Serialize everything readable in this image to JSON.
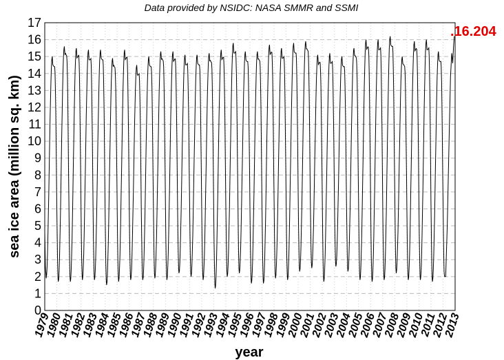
{
  "chart_data": {
    "type": "line",
    "title": "Data provided by NSIDC: NASA SMMR and SSMI",
    "xlabel": "year",
    "ylabel": "sea ice area (million sq. km)",
    "xlim": [
      1979,
      2013
    ],
    "ylim": [
      0,
      17
    ],
    "grid": true,
    "x_ticks": [
      "1979",
      "1980",
      "1981",
      "1982",
      "1983",
      "1984",
      "1985",
      "1986",
      "1987",
      "1988",
      "1989",
      "1990",
      "1991",
      "1992",
      "1993",
      "1994",
      "1995",
      "1996",
      "1997",
      "1998",
      "1999",
      "2000",
      "2001",
      "2002",
      "2003",
      "2004",
      "2005",
      "2006",
      "2007",
      "2008",
      "2009",
      "2010",
      "2011",
      "2012",
      "2013"
    ],
    "y_ticks": [
      "0",
      "1",
      "2",
      "3",
      "4",
      "5",
      "6",
      "7",
      "8",
      "9",
      "10",
      "11",
      "12",
      "13",
      "14",
      "15",
      "16",
      "17"
    ],
    "series": [
      {
        "color": "#000000",
        "annual_max": [
          15.0,
          15.6,
          15.5,
          15.4,
          15.4,
          14.9,
          15.4,
          14.5,
          15.0,
          15.3,
          15.3,
          15.1,
          15.1,
          15.2,
          15.4,
          15.8,
          15.3,
          15.3,
          15.7,
          15.5,
          15.8,
          15.9,
          15.1,
          15.2,
          15.0,
          15.5,
          16.0,
          16.0,
          16.2,
          15.0,
          15.9,
          16.0,
          15.3
        ],
        "annual_min": [
          1.9,
          1.7,
          1.7,
          1.8,
          1.8,
          1.5,
          1.7,
          1.8,
          1.8,
          1.9,
          1.8,
          2.2,
          2.0,
          1.8,
          1.3,
          2.0,
          2.2,
          1.6,
          1.6,
          1.9,
          1.8,
          2.3,
          2.5,
          1.7,
          2.6,
          2.3,
          1.8,
          1.7,
          1.8,
          2.2,
          1.8,
          1.8,
          1.7,
          2.0
        ]
      }
    ],
    "last_value": 16.204,
    "annotation": {
      "text": ".16.204",
      "color": "#e00000"
    }
  }
}
